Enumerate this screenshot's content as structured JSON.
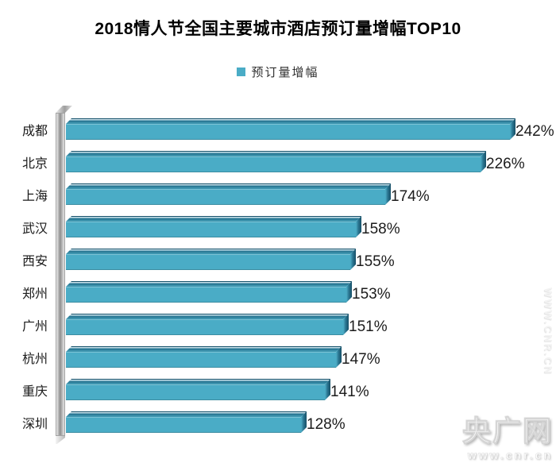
{
  "title": "2018情人节全国主要城市酒店预订量增幅TOP10",
  "legend": {
    "label": "预订量增幅",
    "swatch_color": "#4AACC6"
  },
  "chart_data": {
    "type": "bar",
    "orientation": "horizontal",
    "title": "2018情人节全国主要城市酒店预订量增幅TOP10",
    "series_name": "预订量增幅",
    "categories": [
      "成都",
      "北京",
      "上海",
      "武汉",
      "西安",
      "郑州",
      "广州",
      "杭州",
      "重庆",
      "深圳"
    ],
    "values": [
      242,
      226,
      174,
      158,
      155,
      153,
      151,
      147,
      141,
      128
    ],
    "value_labels": [
      "242%",
      "226%",
      "174%",
      "158%",
      "155%",
      "153%",
      "151%",
      "147%",
      "141%",
      "128%"
    ],
    "value_suffix": "%",
    "xlim": [
      0,
      260
    ],
    "bar_color": "#4AACC6",
    "legend_position": "top",
    "grid": false,
    "style": "3d-horizontal-bars",
    "background_color": "#ffffff"
  },
  "watermark": {
    "logo": "央广网",
    "url": "www.cnr.cn",
    "side_url": "WWW.CNR.CN"
  }
}
